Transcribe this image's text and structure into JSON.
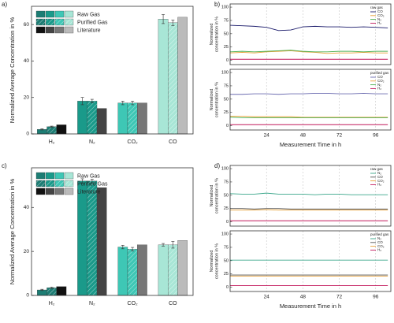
{
  "chart_data": [
    {
      "type": "bar",
      "label": "a)",
      "ylabel": "Normalized Average Concentration in %",
      "categories": [
        "H₂",
        "N₂",
        "CO₂",
        "CO"
      ],
      "ylim": [
        0,
        70
      ],
      "yticks": [
        0,
        20,
        40,
        60
      ],
      "legend": "upper left",
      "series": [
        {
          "name": "Raw Gas",
          "colors": [
            "#1d7d74",
            "#1a9a8a",
            "#3ec7b5",
            "#a8e6d6"
          ],
          "values": [
            2.5,
            18,
            17,
            63
          ],
          "errors": [
            0.3,
            2,
            1,
            2.5
          ]
        },
        {
          "name": "Purified Gas",
          "colors": [
            "#1d7d74",
            "#1a9a8a",
            "#3ec7b5",
            "#a8e6d6"
          ],
          "hatch": true,
          "values": [
            4,
            18,
            17,
            61
          ],
          "errors": [
            0.3,
            1,
            1,
            1.5
          ]
        },
        {
          "name": "Literature",
          "colors": [
            "#111111",
            "#444444",
            "#777777",
            "#bbbbbb"
          ],
          "values": [
            5,
            14,
            17,
            64
          ]
        }
      ]
    },
    {
      "type": "line",
      "label": "b)",
      "legend_title": "raw gas",
      "ylabel": [
        "Normalized",
        "concentration in %"
      ],
      "xlim": [
        0,
        106
      ],
      "xticks": [
        24,
        48,
        72,
        96
      ],
      "ylim": [
        -8,
        106
      ],
      "yticks": [
        0,
        25,
        50,
        75,
        100
      ],
      "x": [
        0,
        8,
        16,
        24,
        32,
        40,
        48,
        56,
        64,
        72,
        80,
        88,
        96,
        104
      ],
      "series": [
        {
          "name": "CO",
          "color": "#1b1b6b",
          "values": [
            66,
            65,
            64,
            62,
            56,
            57,
            63,
            64,
            63,
            63,
            62,
            63,
            62,
            61
          ]
        },
        {
          "name": "CO₂",
          "color": "#e8a33a",
          "values": [
            14,
            15,
            14,
            16,
            17,
            18,
            16,
            15,
            13,
            14,
            14,
            15,
            14,
            14
          ]
        },
        {
          "name": "N₂",
          "color": "#4caf50",
          "values": [
            16,
            17,
            16,
            17,
            18,
            19,
            17,
            16,
            16,
            17,
            17,
            16,
            17,
            17
          ]
        },
        {
          "name": "H₂",
          "color": "#c2185b",
          "values": [
            2,
            2,
            2,
            2,
            2,
            2,
            2,
            2,
            2,
            2,
            2,
            2,
            2,
            2
          ]
        }
      ]
    },
    {
      "type": "line",
      "legend_title": "purified gas",
      "ylabel": [
        "Normalized",
        "concentration in %"
      ],
      "xlabel": "Measurement Time in h",
      "xlim": [
        0,
        106
      ],
      "xticks": [
        24,
        48,
        72,
        96
      ],
      "ylim": [
        -8,
        106
      ],
      "yticks": [
        0,
        25,
        50,
        75,
        100
      ],
      "x": [
        0,
        8,
        16,
        24,
        32,
        40,
        48,
        56,
        64,
        72,
        80,
        88,
        96,
        104
      ],
      "series": [
        {
          "name": "CO",
          "color": "#6b6bb0",
          "values": [
            59,
            59,
            60,
            60,
            59,
            60,
            60,
            61,
            61,
            60,
            60,
            61,
            60,
            60
          ]
        },
        {
          "name": "CO₂",
          "color": "#e8a33a",
          "values": [
            18,
            18,
            17,
            17,
            17,
            17,
            16,
            16,
            16,
            16,
            16,
            16,
            16,
            16
          ]
        },
        {
          "name": "N₂",
          "color": "#4caf50",
          "values": [
            16,
            15,
            15,
            15,
            15,
            15,
            15,
            15,
            15,
            15,
            15,
            15,
            15,
            15
          ]
        },
        {
          "name": "H₂",
          "color": "#c2185b",
          "values": [
            2,
            2,
            2,
            2,
            2,
            2,
            2,
            2,
            2,
            2,
            2,
            2,
            2,
            2
          ]
        }
      ]
    },
    {
      "type": "bar",
      "label": "c)",
      "ylabel": "Normalized Average Concentration in %",
      "categories": [
        "H₂",
        "N₂",
        "CO₂",
        "CO"
      ],
      "ylim": [
        0,
        58
      ],
      "yticks": [
        0,
        20,
        40
      ],
      "legend": "upper left",
      "series": [
        {
          "name": "Raw Gas",
          "colors": [
            "#1d7d74",
            "#1a9a8a",
            "#3ec7b5",
            "#a8e6d6"
          ],
          "values": [
            2.5,
            52,
            22,
            23
          ],
          "errors": [
            0.3,
            1,
            0.8,
            0.6
          ]
        },
        {
          "name": "Purified Gas",
          "colors": [
            "#1d7d74",
            "#1a9a8a",
            "#3ec7b5",
            "#a8e6d6"
          ],
          "hatch": true,
          "values": [
            3.5,
            52,
            21,
            23
          ],
          "errors": [
            0.3,
            0.8,
            0.8,
            1.5
          ]
        },
        {
          "name": "Literature",
          "colors": [
            "#111111",
            "#444444",
            "#777777",
            "#bbbbbb"
          ],
          "values": [
            4,
            49,
            23,
            25
          ]
        }
      ]
    },
    {
      "type": "line",
      "label": "d)",
      "legend_title": "raw gas",
      "ylabel": [
        "Normalized",
        "concentration in %"
      ],
      "xlim": [
        0,
        106
      ],
      "xticks": [
        24,
        48,
        72,
        96
      ],
      "ylim": [
        -8,
        106
      ],
      "yticks": [
        0,
        25,
        50,
        75,
        100
      ],
      "x": [
        0,
        8,
        16,
        24,
        32,
        40,
        48,
        56,
        64,
        72,
        80,
        88,
        96,
        104
      ],
      "series": [
        {
          "name": "N₂",
          "color": "#3aa68a",
          "values": [
            53,
            52,
            52,
            54,
            52,
            52,
            52,
            51,
            52,
            52,
            51,
            51,
            51,
            51
          ]
        },
        {
          "name": "CO",
          "color": "#555555",
          "values": [
            25,
            25,
            24,
            25,
            25,
            24,
            24,
            24,
            24,
            24,
            24,
            24,
            24,
            24
          ]
        },
        {
          "name": "CO₂",
          "color": "#e8a33a",
          "values": [
            22,
            22,
            22,
            23,
            22,
            22,
            22,
            22,
            22,
            22,
            22,
            22,
            22,
            22
          ]
        },
        {
          "name": "H₂",
          "color": "#c2185b",
          "values": [
            2,
            2,
            2,
            2,
            2,
            2,
            2,
            2,
            2,
            2,
            2,
            2,
            2,
            2
          ]
        }
      ]
    },
    {
      "type": "line",
      "legend_title": "purified gas",
      "ylabel": [
        "Normalized",
        "concentration in %"
      ],
      "xlabel": "Measurement Time in h",
      "xlim": [
        0,
        106
      ],
      "xticks": [
        24,
        48,
        72,
        96
      ],
      "ylim": [
        -8,
        106
      ],
      "yticks": [
        0,
        25,
        50,
        75,
        100
      ],
      "x": [
        0,
        8,
        16,
        24,
        32,
        40,
        48,
        56,
        64,
        72,
        80,
        88,
        96,
        104
      ],
      "series": [
        {
          "name": "N₂",
          "color": "#3aa68a",
          "values": [
            51,
            51,
            51,
            51,
            51,
            51,
            51,
            51,
            51,
            51,
            51,
            51,
            51,
            51
          ]
        },
        {
          "name": "CO",
          "color": "#555555",
          "values": [
            23,
            23,
            23,
            23,
            23,
            23,
            23,
            23,
            23,
            23,
            23,
            23,
            23,
            23
          ]
        },
        {
          "name": "CO₂",
          "color": "#e8a33a",
          "values": [
            21,
            21,
            21,
            21,
            21,
            21,
            21,
            21,
            21,
            21,
            21,
            21,
            21,
            21
          ]
        },
        {
          "name": "H₂",
          "color": "#c2185b",
          "values": [
            3,
            3,
            3,
            3,
            3,
            3,
            3,
            3,
            3,
            3,
            3,
            3,
            3,
            3
          ]
        }
      ]
    }
  ]
}
